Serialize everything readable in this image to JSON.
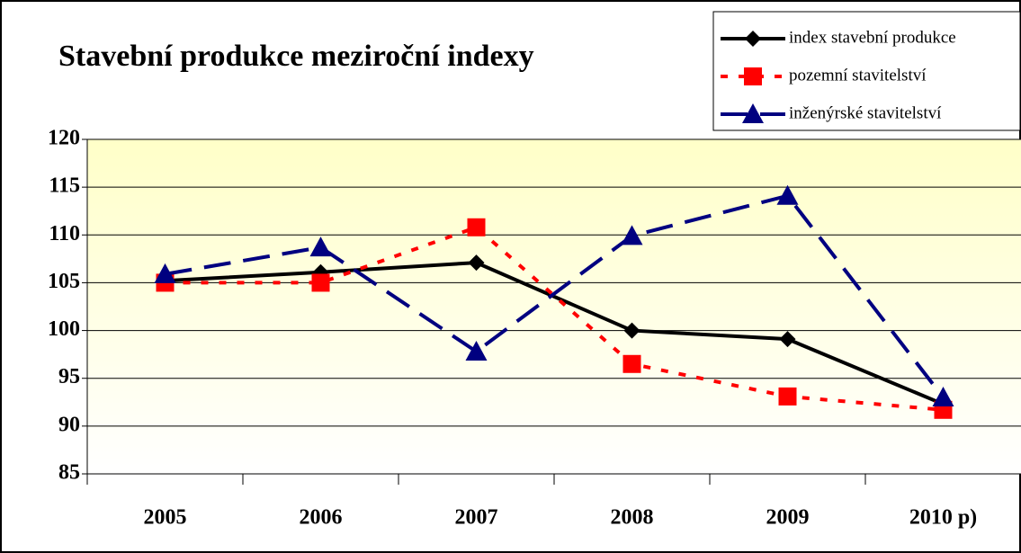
{
  "chart_data": {
    "type": "line",
    "title": "Stavební produkce meziroční indexy",
    "categories": [
      "2005",
      "2006",
      "2007",
      "2008",
      "2009",
      "2010 p)"
    ],
    "series": [
      {
        "name": "index stavební produkce",
        "color": "#000000",
        "line_style": "solid",
        "marker": "diamond",
        "values": [
          105.2,
          106.1,
          107.1,
          100.0,
          99.1,
          92.3
        ]
      },
      {
        "name": "pozemní stavitelství",
        "color": "#ff0000",
        "line_style": "dotted",
        "marker": "square",
        "values": [
          105.0,
          105.0,
          110.8,
          96.5,
          93.1,
          91.7
        ]
      },
      {
        "name": "inženýrské stavitelství",
        "color": "#000080",
        "line_style": "dashed",
        "marker": "triangle",
        "values": [
          105.9,
          108.7,
          97.8,
          109.9,
          114.1,
          93.0
        ]
      }
    ],
    "ylim": [
      85,
      120
    ],
    "yticks": [
      85,
      90,
      95,
      100,
      105,
      110,
      115,
      120
    ],
    "grid": true,
    "legend": "top-right"
  }
}
